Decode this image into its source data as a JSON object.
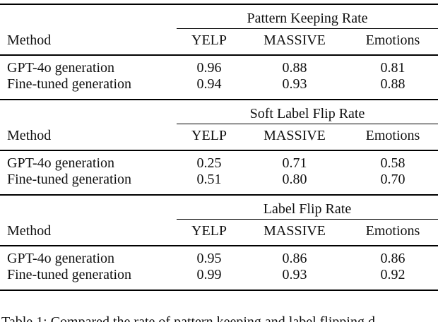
{
  "page": {
    "background": "#ffffff",
    "text_color": "#111111",
    "rule_color": "#000000"
  },
  "table": {
    "method_header": "Method",
    "columns": [
      "YELP",
      "MASSIVE",
      "Emotions"
    ],
    "sections": [
      {
        "spanner": "Pattern Keeping Rate",
        "rows": [
          {
            "method": "GPT-4o generation",
            "values": [
              "0.96",
              "0.88",
              "0.81"
            ]
          },
          {
            "method": "Fine-tuned generation",
            "values": [
              "0.94",
              "0.93",
              "0.88"
            ]
          }
        ]
      },
      {
        "spanner": "Soft Label Flip Rate",
        "rows": [
          {
            "method": "GPT-4o generation",
            "values": [
              "0.25",
              "0.71",
              "0.58"
            ]
          },
          {
            "method": "Fine-tuned generation",
            "values": [
              "0.51",
              "0.80",
              "0.70"
            ]
          }
        ]
      },
      {
        "spanner": "Label Flip Rate",
        "rows": [
          {
            "method": "GPT-4o generation",
            "values": [
              "0.95",
              "0.86",
              "0.86"
            ]
          },
          {
            "method": "Fine-tuned generation",
            "values": [
              "0.99",
              "0.93",
              "0.92"
            ]
          }
        ]
      }
    ]
  },
  "caption": "Table 1: Compared the rate of pattern keeping and label flipping d"
}
